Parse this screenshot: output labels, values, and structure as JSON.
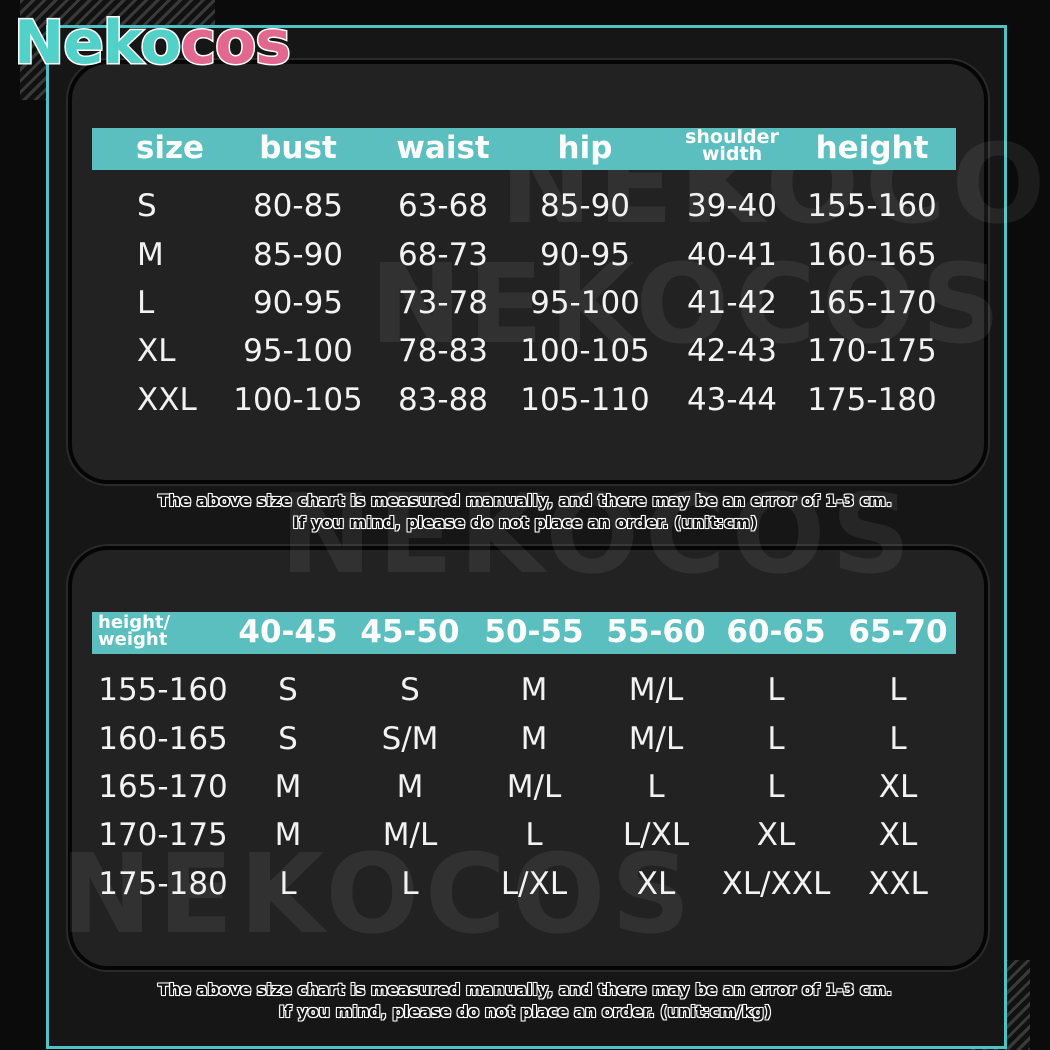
{
  "logo": {
    "text": "Nekocos",
    "part1": "Nek",
    "part2": "o",
    "part3": "cos"
  },
  "table1": {
    "headers": [
      "size",
      "bust",
      "waist",
      "hip",
      "shoulder width",
      "height"
    ],
    "rows": [
      [
        "S",
        "80-85",
        "63-68",
        "85-90",
        "39-40",
        "155-160"
      ],
      [
        "M",
        "85-90",
        "68-73",
        "90-95",
        "40-41",
        "160-165"
      ],
      [
        "L",
        "90-95",
        "73-78",
        "95-100",
        "41-42",
        "165-170"
      ],
      [
        "XL",
        "95-100",
        "78-83",
        "100-105",
        "42-43",
        "170-175"
      ],
      [
        "XXL",
        "100-105",
        "83-88",
        "105-110",
        "43-44",
        "175-180"
      ]
    ],
    "note_line1": "The above size chart is measured manually, and there may be an error of 1-3 cm.",
    "note_line2": "If you mind, please do not place an order.     (unit:cm)"
  },
  "table2": {
    "headers": [
      "height/ weight",
      "40-45",
      "45-50",
      "50-55",
      "55-60",
      "60-65",
      "65-70"
    ],
    "rows": [
      [
        "155-160",
        "S",
        "S",
        "M",
        "M/L",
        "L",
        "L"
      ],
      [
        "160-165",
        "S",
        "S/M",
        "M",
        "M/L",
        "L",
        "L"
      ],
      [
        "165-170",
        "M",
        "M",
        "M/L",
        "L",
        "L",
        "XL"
      ],
      [
        "170-175",
        "M",
        "M/L",
        "L",
        "L/XL",
        "XL",
        "XL"
      ],
      [
        "175-180",
        "L",
        "L",
        "L/XL",
        "XL",
        "XL/XXL",
        "XXL"
      ]
    ],
    "note_line1": "The above size chart is measured manually, and there may be an error of 1-3 cm.",
    "note_line2": "If you mind, please do not place an order.     (unit:cm/kg)"
  },
  "colors": {
    "accent": "#5cbfbf",
    "logo_teal": "#52d1c8",
    "logo_pink": "#e2688f",
    "background": "#0b0b0b"
  }
}
